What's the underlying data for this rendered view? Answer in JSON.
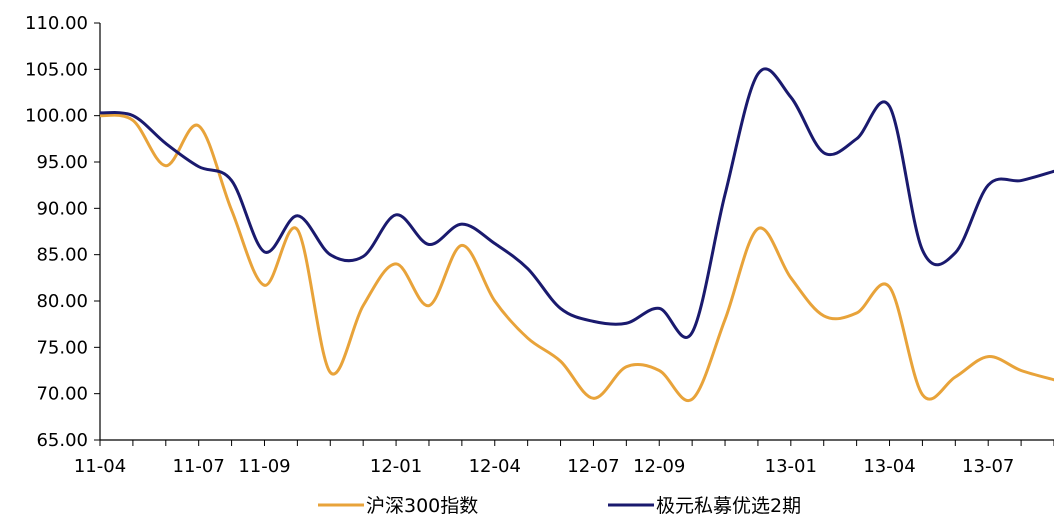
{
  "chart_data": {
    "type": "line",
    "title": "",
    "xlabel": "",
    "ylabel": "",
    "ylim": [
      65,
      110
    ],
    "yticks": [
      "65.00",
      "70.00",
      "75.00",
      "80.00",
      "85.00",
      "90.00",
      "95.00",
      "100.00",
      "105.00",
      "110.00"
    ],
    "x": [
      "11-04",
      "11-05",
      "11-06",
      "11-07",
      "11-08",
      "11-09",
      "11-10",
      "11-11",
      "11-12",
      "12-01",
      "12-02",
      "12-03",
      "12-04",
      "12-05",
      "12-06",
      "12-07",
      "12-08",
      "12-09",
      "12-10",
      "12-11",
      "12-12",
      "13-01",
      "13-02",
      "13-03",
      "13-04",
      "13-05",
      "13-06",
      "13-07",
      "13-08",
      "13-09"
    ],
    "xtick_labels": [
      "11-04",
      "11-07",
      "11-09",
      "12-01",
      "12-04",
      "12-07",
      "12-09",
      "13-01",
      "13-04",
      "13-07"
    ],
    "grid": false,
    "legend_position": "bottom",
    "series": [
      {
        "name": "沪深300指数",
        "color": "#E8A33A",
        "values": [
          100.0,
          99.5,
          94.6,
          98.9,
          89.8,
          81.7,
          87.7,
          72.3,
          79.5,
          84.0,
          79.5,
          86.0,
          80.0,
          76.0,
          73.5,
          69.5,
          72.9,
          72.5,
          69.4,
          78.0,
          87.8,
          82.5,
          78.4,
          78.7,
          81.5,
          69.9,
          71.8,
          74.0,
          72.5,
          71.5
        ]
      },
      {
        "name": "极元私募优选2期",
        "color": "#1A1A6E",
        "values": [
          100.3,
          100.0,
          97.0,
          94.5,
          93.0,
          85.3,
          89.2,
          85.0,
          84.8,
          89.3,
          86.1,
          88.3,
          86.2,
          83.5,
          79.2,
          77.8,
          77.6,
          79.2,
          76.6,
          91.5,
          104.5,
          102.0,
          96.0,
          97.5,
          101.0,
          85.5,
          85.2,
          92.5,
          93.0,
          94.0
        ]
      }
    ]
  }
}
